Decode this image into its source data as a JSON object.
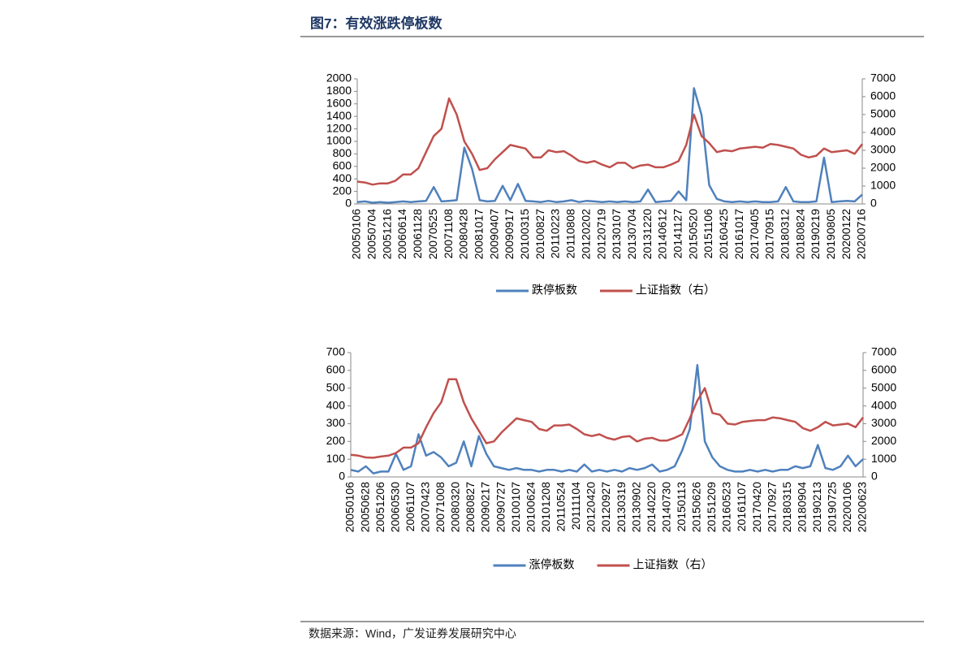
{
  "header": {
    "title": "图7：有效涨跌停板数"
  },
  "chart_data": [
    {
      "type": "line",
      "categories": [
        "20050106",
        null,
        "20050704",
        null,
        "20051216",
        null,
        "20060614",
        null,
        "20061128",
        null,
        "20070525",
        null,
        "20071108",
        null,
        "20080428",
        null,
        "20081017",
        null,
        "20090407",
        null,
        "20090917",
        null,
        "20100315",
        null,
        "20100827",
        null,
        "20110223",
        null,
        "20110808",
        null,
        "20120202",
        null,
        "20120719",
        null,
        "20130107",
        null,
        "20130704",
        null,
        "20131220",
        null,
        "20140612",
        null,
        "20141127",
        null,
        "20150520",
        null,
        "20151106",
        null,
        "20160425",
        null,
        "20161017",
        null,
        "20170405",
        null,
        "20170915",
        null,
        "20180312",
        null,
        "20180824",
        null,
        "20190219",
        null,
        "20190805",
        null,
        "20200122",
        null,
        "20200716"
      ],
      "series": [
        {
          "name": "跌停板数",
          "color": "#4f81bd",
          "axis": "y",
          "values": [
            30,
            40,
            20,
            30,
            20,
            30,
            40,
            30,
            40,
            50,
            270,
            40,
            50,
            60,
            900,
            560,
            60,
            40,
            50,
            290,
            60,
            320,
            50,
            40,
            30,
            50,
            30,
            40,
            60,
            30,
            50,
            40,
            30,
            40,
            30,
            40,
            30,
            40,
            230,
            30,
            40,
            50,
            200,
            60,
            1850,
            1420,
            300,
            80,
            40,
            30,
            40,
            30,
            40,
            30,
            30,
            40,
            270,
            40,
            30,
            30,
            40,
            740,
            30,
            40,
            50,
            40,
            150
          ]
        },
        {
          "name": "上证指数（右）",
          "color": "#c0504d",
          "axis": "y2",
          "values": [
            1250,
            1200,
            1080,
            1150,
            1150,
            1300,
            1650,
            1650,
            2000,
            2900,
            3800,
            4200,
            5900,
            5000,
            3500,
            2800,
            1900,
            2000,
            2500,
            2900,
            3300,
            3200,
            3100,
            2600,
            2600,
            3000,
            2900,
            2950,
            2700,
            2400,
            2300,
            2400,
            2200,
            2050,
            2300,
            2300,
            2000,
            2150,
            2200,
            2050,
            2050,
            2200,
            2400,
            3300,
            5000,
            3800,
            3400,
            2900,
            3000,
            2950,
            3100,
            3150,
            3200,
            3150,
            3350,
            3300,
            3200,
            3100,
            2750,
            2600,
            2700,
            3100,
            2900,
            2950,
            3000,
            2800,
            3350
          ]
        }
      ],
      "ylim": [
        0,
        2000
      ],
      "yticks": [
        0,
        200,
        400,
        600,
        800,
        1000,
        1200,
        1400,
        1600,
        1800,
        2000
      ],
      "y2lim": [
        0,
        7000
      ],
      "y2ticks": [
        0,
        1000,
        2000,
        3000,
        4000,
        5000,
        6000,
        7000
      ],
      "legend": "bottom"
    },
    {
      "type": "line",
      "categories": [
        "20050106",
        null,
        "20050628",
        null,
        "20051206",
        null,
        "20060530",
        null,
        "20061107",
        null,
        "20070423",
        null,
        "20071008",
        null,
        "20080320",
        null,
        "20080827",
        null,
        "20090217",
        null,
        "20090727",
        null,
        "20100107",
        null,
        "20100624",
        null,
        "20101208",
        null,
        "20110524",
        null,
        "20111104",
        null,
        "20120420",
        null,
        "20120927",
        null,
        "20130319",
        null,
        "20130902",
        null,
        "20140220",
        null,
        "20140730",
        null,
        "20150113",
        null,
        "20150626",
        null,
        "20151209",
        null,
        "20160523",
        null,
        "20161107",
        null,
        "20170420",
        null,
        "20170927",
        null,
        "20180315",
        null,
        "20180904",
        null,
        "20190213",
        null,
        "20190725",
        null,
        "20200106",
        null,
        "20200623"
      ],
      "series": [
        {
          "name": "涨停板数",
          "color": "#4f81bd",
          "axis": "y",
          "values": [
            40,
            30,
            60,
            20,
            30,
            30,
            130,
            40,
            60,
            240,
            120,
            140,
            110,
            60,
            80,
            200,
            60,
            230,
            130,
            60,
            50,
            40,
            50,
            40,
            40,
            30,
            40,
            40,
            30,
            40,
            30,
            70,
            30,
            40,
            30,
            40,
            30,
            50,
            40,
            50,
            70,
            30,
            40,
            60,
            150,
            270,
            630,
            200,
            110,
            60,
            40,
            30,
            30,
            40,
            30,
            40,
            30,
            40,
            40,
            60,
            50,
            60,
            180,
            50,
            40,
            60,
            120,
            60,
            100
          ]
        },
        {
          "name": "上证指数（右）",
          "color": "#c0504d",
          "axis": "y2",
          "values": [
            1250,
            1200,
            1100,
            1080,
            1150,
            1200,
            1350,
            1650,
            1650,
            1900,
            2800,
            3600,
            4200,
            5500,
            5500,
            4200,
            3300,
            2600,
            1900,
            2000,
            2500,
            2900,
            3300,
            3200,
            3100,
            2700,
            2600,
            2900,
            2900,
            2950,
            2700,
            2400,
            2300,
            2400,
            2200,
            2100,
            2250,
            2300,
            2000,
            2150,
            2200,
            2050,
            2050,
            2200,
            2400,
            3300,
            4300,
            5000,
            3600,
            3500,
            3000,
            2950,
            3100,
            3150,
            3200,
            3200,
            3350,
            3300,
            3200,
            3100,
            2750,
            2600,
            2800,
            3100,
            2900,
            2950,
            3000,
            2800,
            3350
          ]
        }
      ],
      "ylim": [
        0,
        700
      ],
      "yticks": [
        0,
        100,
        200,
        300,
        400,
        500,
        600,
        700
      ],
      "y2lim": [
        0,
        7000
      ],
      "y2ticks": [
        0,
        1000,
        2000,
        3000,
        4000,
        5000,
        6000,
        7000
      ],
      "legend": "bottom"
    }
  ],
  "footer": {
    "source": "数据来源：Wind，广发证券发展研究中心"
  }
}
